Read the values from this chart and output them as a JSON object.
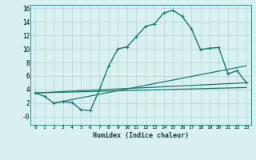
{
  "xlabel": "Humidex (Indice chaleur)",
  "bg_color": "#d8f0f0",
  "grid_color": "#b8d8d8",
  "line_color": "#1a7a6e",
  "xlim": [
    -0.5,
    23.5
  ],
  "ylim": [
    -1.2,
    16.5
  ],
  "xticks": [
    0,
    1,
    2,
    3,
    4,
    5,
    6,
    7,
    8,
    9,
    10,
    11,
    12,
    13,
    14,
    15,
    16,
    17,
    18,
    19,
    20,
    21,
    22,
    23
  ],
  "yticks": [
    0,
    2,
    4,
    6,
    8,
    10,
    12,
    14,
    16
  ],
  "ytick_labels": [
    "-0",
    "2",
    "4",
    "6",
    "8",
    "10",
    "12",
    "14",
    "16"
  ],
  "series": [
    {
      "x": [
        0,
        1,
        2,
        3,
        4,
        5,
        6,
        7,
        8,
        9,
        10,
        11,
        12,
        13,
        14,
        15,
        16,
        17,
        18,
        19,
        20,
        21,
        22,
        23
      ],
      "y": [
        3.5,
        3.0,
        2.0,
        2.2,
        2.1,
        1.0,
        0.9,
        4.0,
        7.5,
        10.0,
        10.3,
        11.8,
        13.3,
        13.7,
        15.3,
        15.7,
        14.8,
        13.0,
        9.9,
        10.1,
        10.2,
        6.3,
        6.8,
        5.0
      ],
      "marker": "+",
      "markersize": 3,
      "lw": 1.0
    },
    {
      "x": [
        0,
        23
      ],
      "y": [
        3.5,
        5.0
      ],
      "marker": null,
      "markersize": 0,
      "lw": 0.9
    },
    {
      "x": [
        0,
        23
      ],
      "y": [
        3.5,
        4.3
      ],
      "marker": null,
      "markersize": 0,
      "lw": 0.9
    },
    {
      "x": [
        2,
        23
      ],
      "y": [
        2.0,
        7.5
      ],
      "marker": null,
      "markersize": 0,
      "lw": 0.9
    }
  ]
}
